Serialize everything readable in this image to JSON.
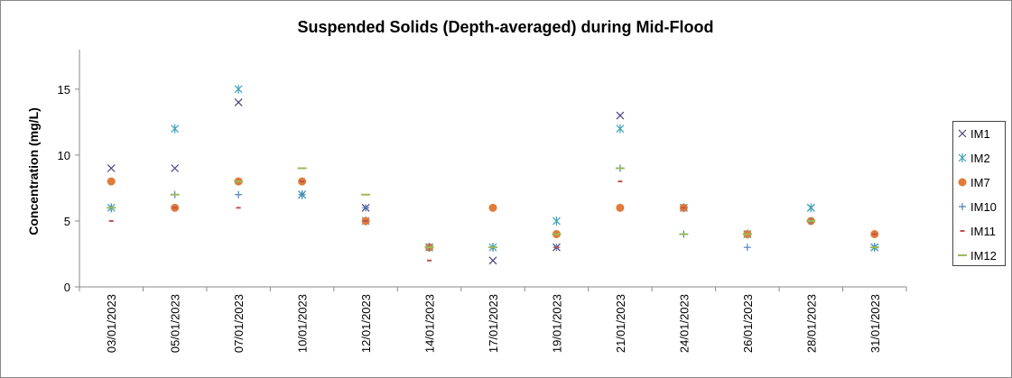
{
  "chart_data": {
    "type": "scatter",
    "title": "Suspended Solids (Depth-averaged) during Mid-Flood",
    "y_label": "Concentration (mg/L)",
    "categories": [
      "03/01/2023",
      "05/01/2023",
      "07/01/2023",
      "10/01/2023",
      "12/01/2023",
      "14/01/2023",
      "17/01/2023",
      "19/01/2023",
      "21/01/2023",
      "24/01/2023",
      "26/01/2023",
      "28/01/2023",
      "31/01/2023"
    ],
    "series": [
      {
        "name": "IM1",
        "color": "#4b3f7e",
        "marker": "x",
        "values": [
          9,
          9,
          14,
          7,
          6,
          3,
          2,
          3,
          13,
          6,
          4,
          6,
          3
        ]
      },
      {
        "name": "IM2",
        "color": "#3aa3b8",
        "marker": "star",
        "values": [
          6,
          12,
          15,
          7,
          5,
          3,
          3,
          5,
          12,
          6,
          4,
          6,
          3
        ]
      },
      {
        "name": "IM7",
        "color": "#e07b39",
        "marker": "circle",
        "values": [
          8,
          6,
          8,
          8,
          5,
          3,
          6,
          4,
          6,
          6,
          4,
          5,
          4
        ]
      },
      {
        "name": "IM10",
        "color": "#4f81bd",
        "marker": "plus",
        "values": [
          6,
          7,
          7,
          7,
          6,
          3,
          3,
          3,
          9,
          4,
          3,
          5,
          3
        ]
      },
      {
        "name": "IM11",
        "color": "#c0504d",
        "marker": "dash",
        "values": [
          5,
          6,
          6,
          8,
          5,
          2,
          3,
          3,
          8,
          6,
          4,
          5,
          4
        ]
      },
      {
        "name": "IM12",
        "color": "#9bbb59",
        "marker": "long-dash",
        "values": [
          6,
          7,
          8,
          9,
          7,
          3,
          3,
          4,
          9,
          4,
          4,
          5,
          3
        ]
      }
    ],
    "ylim": [
      0,
      18
    ],
    "yticks": [
      0,
      5,
      10,
      15
    ],
    "legend": "right"
  }
}
